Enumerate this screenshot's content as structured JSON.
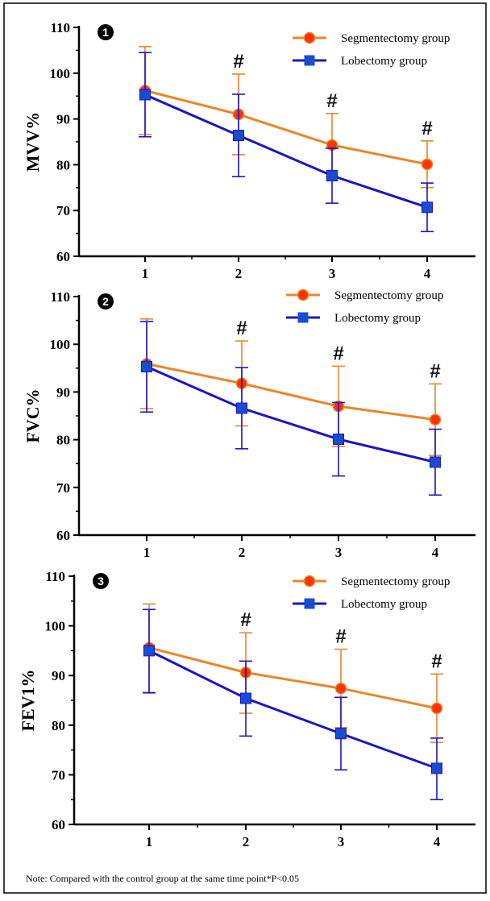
{
  "note": "Note: Compared with the control group at the same time point*P<0.05",
  "colors": {
    "segmentectomy": "#e8862a",
    "segmentectomy_marker": "#ff3300",
    "lobectomy": "#1a14c8",
    "lobectomy_marker": "#1a4cd0",
    "axis": "#000000"
  },
  "chart_data": [
    {
      "type": "line",
      "panel_label": "1",
      "ylabel": "MVV%",
      "x": [
        1,
        2,
        3,
        4
      ],
      "xticks": [
        "1",
        "2",
        "3",
        "4"
      ],
      "ylim": [
        60,
        110
      ],
      "yticks": [
        60,
        70,
        80,
        90,
        100,
        110
      ],
      "significance_marks": [
        {
          "x": 2,
          "label": "#"
        },
        {
          "x": 3,
          "label": "#"
        },
        {
          "x": 4,
          "label": "#"
        }
      ],
      "legend": {
        "position": "top-right",
        "entries": [
          "Segmentectomy group",
          "Lobectomy group"
        ]
      },
      "series": [
        {
          "name": "Segmentectomy group",
          "color_key": "segmentectomy",
          "marker": "circle",
          "values": [
            96.2,
            91.0,
            84.3,
            80.1
          ],
          "error_upper": [
            105.8,
            99.8,
            91.2,
            85.2
          ],
          "error_lower": [
            86.6,
            82.2,
            77.4,
            75.0
          ]
        },
        {
          "name": "Lobectomy group",
          "color_key": "lobectomy",
          "marker": "square",
          "values": [
            95.3,
            86.4,
            77.6,
            70.7
          ],
          "error_upper": [
            104.5,
            95.4,
            83.6,
            76.0
          ],
          "error_lower": [
            86.1,
            77.4,
            71.6,
            65.4
          ]
        }
      ]
    },
    {
      "type": "line",
      "panel_label": "2",
      "ylabel": "FVC%",
      "x": [
        1,
        2,
        3,
        4
      ],
      "xticks": [
        "1",
        "2",
        "3",
        "4"
      ],
      "ylim": [
        60,
        110
      ],
      "yticks": [
        60,
        70,
        80,
        90,
        100,
        110
      ],
      "significance_marks": [
        {
          "x": 2,
          "label": "#"
        },
        {
          "x": 3,
          "label": "#"
        },
        {
          "x": 4,
          "label": "#"
        }
      ],
      "legend": {
        "position": "top-right",
        "entries": [
          "Segmentectomy group",
          "Lobectomy group"
        ]
      },
      "series": [
        {
          "name": "Segmentectomy group",
          "color_key": "segmentectomy",
          "marker": "circle",
          "values": [
            95.9,
            91.8,
            87.0,
            84.2
          ],
          "error_upper": [
            105.3,
            100.7,
            95.4,
            91.7
          ],
          "error_lower": [
            86.5,
            82.9,
            78.6,
            76.7
          ]
        },
        {
          "name": "Lobectomy group",
          "color_key": "lobectomy",
          "marker": "square",
          "values": [
            95.3,
            86.6,
            80.1,
            75.3
          ],
          "error_upper": [
            104.8,
            95.1,
            87.8,
            82.2
          ],
          "error_lower": [
            85.8,
            78.1,
            72.4,
            68.4
          ]
        }
      ]
    },
    {
      "type": "line",
      "panel_label": "3",
      "ylabel": "FEV1%",
      "x": [
        1,
        2,
        3,
        4
      ],
      "xticks": [
        "1",
        "2",
        "3",
        "4"
      ],
      "ylim": [
        60,
        110
      ],
      "yticks": [
        60,
        70,
        80,
        90,
        100,
        110
      ],
      "significance_marks": [
        {
          "x": 2,
          "label": "#"
        },
        {
          "x": 3,
          "label": "#"
        },
        {
          "x": 4,
          "label": "#"
        }
      ],
      "legend": {
        "position": "top-right",
        "entries": [
          "Segmentectomy group",
          "Lobectomy group"
        ]
      },
      "series": [
        {
          "name": "Segmentectomy group",
          "color_key": "segmentectomy",
          "marker": "circle",
          "values": [
            95.6,
            90.6,
            87.4,
            83.4
          ],
          "error_upper": [
            104.4,
            98.6,
            95.3,
            90.3
          ],
          "error_lower": [
            86.6,
            82.4,
            79.5,
            76.5
          ]
        },
        {
          "name": "Lobectomy group",
          "color_key": "lobectomy",
          "marker": "square",
          "values": [
            95.0,
            85.4,
            78.3,
            71.3
          ],
          "error_upper": [
            103.3,
            92.9,
            85.6,
            77.4
          ],
          "error_lower": [
            86.5,
            77.8,
            71.0,
            65.0
          ]
        }
      ]
    }
  ]
}
